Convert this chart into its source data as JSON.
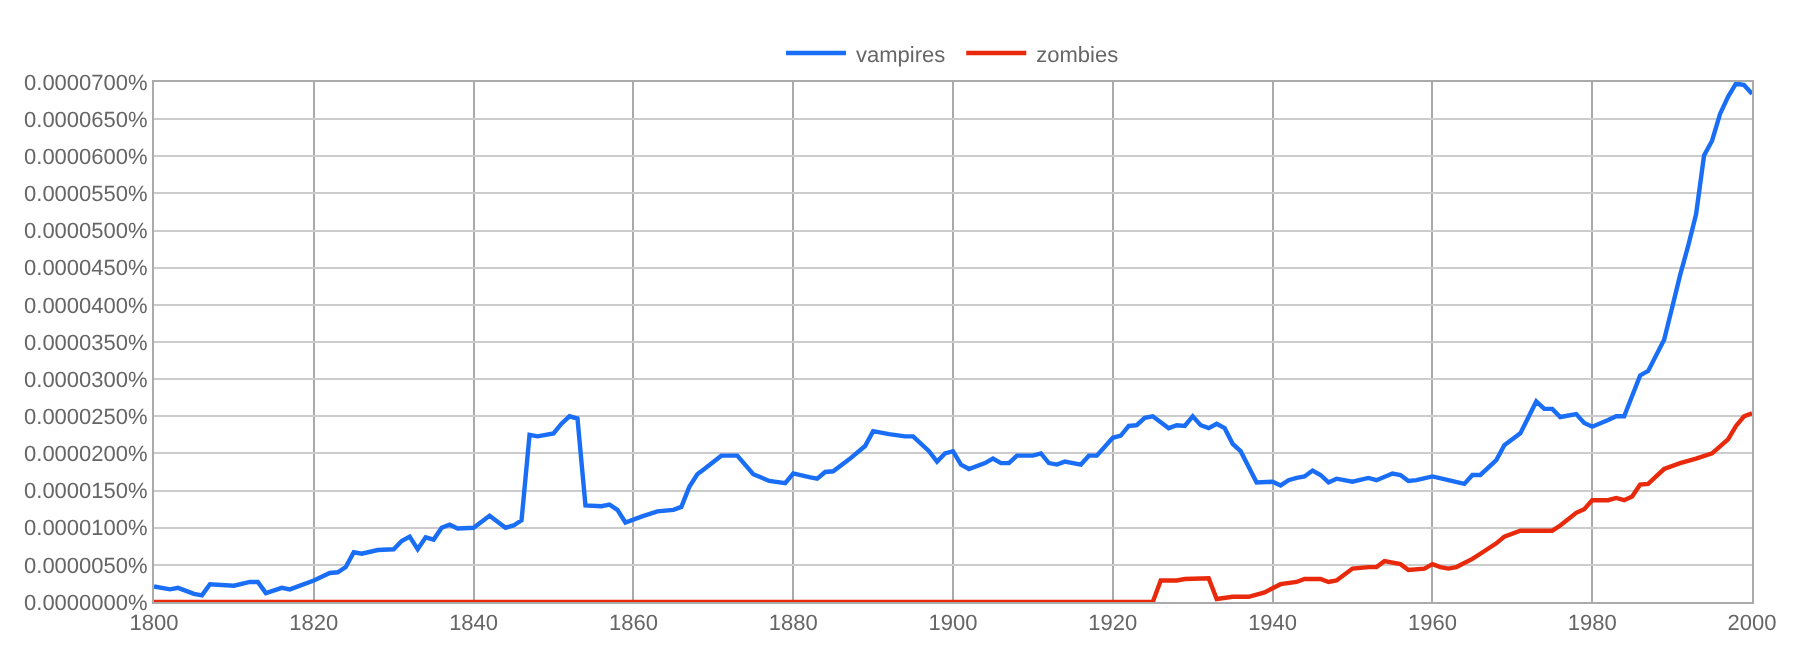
{
  "chart_data": {
    "type": "line",
    "legend": "top",
    "grid": true,
    "marker": "none",
    "line_style": "solid",
    "xlim": [
      1800,
      2000
    ],
    "xticks": [
      1800,
      1820,
      1840,
      1860,
      1880,
      1900,
      1920,
      1940,
      1960,
      1980,
      2000
    ],
    "ylim": [
      0,
      7e-05
    ],
    "yticks": [
      {
        "value": 0,
        "label": "0.0000000%"
      },
      {
        "value": 5e-06,
        "label": "0.0000050%"
      },
      {
        "value": 1e-05,
        "label": "0.0000100%"
      },
      {
        "value": 1.5e-05,
        "label": "0.0000150%"
      },
      {
        "value": 2e-05,
        "label": "0.0000200%"
      },
      {
        "value": 2.5e-05,
        "label": "0.0000250%"
      },
      {
        "value": 3e-05,
        "label": "0.0000300%"
      },
      {
        "value": 3.5e-05,
        "label": "0.0000350%"
      },
      {
        "value": 4e-05,
        "label": "0.0000400%"
      },
      {
        "value": 4.5e-05,
        "label": "0.0000450%"
      },
      {
        "value": 5e-05,
        "label": "0.0000500%"
      },
      {
        "value": 5.5e-05,
        "label": "0.0000550%"
      },
      {
        "value": 6e-05,
        "label": "0.0000600%"
      },
      {
        "value": 6.5e-05,
        "label": "0.0000650%"
      },
      {
        "value": 7e-05,
        "label": "0.0000700%"
      }
    ],
    "series": [
      {
        "name": "vampires",
        "color": "#1a6ef5",
        "x": [
          1800,
          1802,
          1803,
          1805,
          1806,
          1807,
          1810,
          1812,
          1813,
          1814,
          1816,
          1817,
          1820,
          1822,
          1823,
          1824,
          1825,
          1826,
          1828,
          1830,
          1831,
          1832,
          1833,
          1834,
          1835,
          1836,
          1837,
          1838,
          1840,
          1842,
          1844,
          1845,
          1846,
          1847,
          1848,
          1850,
          1851,
          1852,
          1853,
          1854,
          1856,
          1857,
          1858,
          1859,
          1861,
          1863,
          1865,
          1866,
          1867,
          1868,
          1869,
          1871,
          1873,
          1875,
          1877,
          1879,
          1880,
          1882,
          1883,
          1884,
          1885,
          1887,
          1889,
          1890,
          1892,
          1894,
          1895,
          1897,
          1898,
          1899,
          1900,
          1901,
          1902,
          1904,
          1905,
          1906,
          1907,
          1908,
          1910,
          1911,
          1912,
          1913,
          1914,
          1916,
          1917,
          1918,
          1920,
          1921,
          1922,
          1923,
          1924,
          1925,
          1926,
          1927,
          1928,
          1929,
          1930,
          1931,
          1932,
          1933,
          1934,
          1935,
          1936,
          1938,
          1940,
          1941,
          1942,
          1943,
          1944,
          1945,
          1946,
          1947,
          1948,
          1950,
          1952,
          1953,
          1955,
          1956,
          1957,
          1958,
          1960,
          1962,
          1964,
          1965,
          1966,
          1968,
          1969,
          1971,
          1973,
          1974,
          1975,
          1976,
          1978,
          1979,
          1980,
          1982,
          1983,
          1984,
          1986,
          1987,
          1989,
          1990,
          1991,
          1992,
          1993,
          1994,
          1995,
          1996,
          1997,
          1998,
          1999,
          2000
        ],
        "values": [
          2.1e-06,
          1.7e-06,
          1.9e-06,
          1.1e-06,
          9e-07,
          2.4e-06,
          2.2e-06,
          2.7e-06,
          2.7e-06,
          1.2e-06,
          1.9e-06,
          1.7e-06,
          2.9e-06,
          3.9e-06,
          4e-06,
          4.7e-06,
          6.7e-06,
          6.5e-06,
          7e-06,
          7.1e-06,
          8.2e-06,
          8.8e-06,
          7.1e-06,
          8.7e-06,
          8.4e-06,
          1e-05,
          1.04e-05,
          9.9e-06,
          1e-05,
          1.16e-05,
          1e-05,
          1.03e-05,
          1.1e-05,
          2.25e-05,
          2.23e-05,
          2.27e-05,
          2.4e-05,
          2.5e-05,
          2.47e-05,
          1.3e-05,
          1.29e-05,
          1.31e-05,
          1.24e-05,
          1.07e-05,
          1.15e-05,
          1.22e-05,
          1.24e-05,
          1.28e-05,
          1.55e-05,
          1.72e-05,
          1.8e-05,
          1.97e-05,
          1.97e-05,
          1.72e-05,
          1.63e-05,
          1.6e-05,
          1.73e-05,
          1.68e-05,
          1.66e-05,
          1.75e-05,
          1.76e-05,
          1.92e-05,
          2.1e-05,
          2.3e-05,
          2.26e-05,
          2.23e-05,
          2.23e-05,
          2.03e-05,
          1.89e-05,
          2e-05,
          2.03e-05,
          1.85e-05,
          1.79e-05,
          1.87e-05,
          1.93e-05,
          1.87e-05,
          1.87e-05,
          1.97e-05,
          1.97e-05,
          2e-05,
          1.87e-05,
          1.85e-05,
          1.89e-05,
          1.85e-05,
          1.97e-05,
          1.97e-05,
          2.21e-05,
          2.24e-05,
          2.37e-05,
          2.38e-05,
          2.48e-05,
          2.5e-05,
          2.42e-05,
          2.34e-05,
          2.38e-05,
          2.37e-05,
          2.5e-05,
          2.38e-05,
          2.34e-05,
          2.4e-05,
          2.34e-05,
          2.13e-05,
          2.03e-05,
          1.61e-05,
          1.62e-05,
          1.57e-05,
          1.64e-05,
          1.67e-05,
          1.69e-05,
          1.77e-05,
          1.71e-05,
          1.61e-05,
          1.66e-05,
          1.62e-05,
          1.67e-05,
          1.64e-05,
          1.73e-05,
          1.71e-05,
          1.63e-05,
          1.64e-05,
          1.69e-05,
          1.64e-05,
          1.59e-05,
          1.71e-05,
          1.71e-05,
          1.91e-05,
          2.11e-05,
          2.27e-05,
          2.7e-05,
          2.6e-05,
          2.6e-05,
          2.49e-05,
          2.53e-05,
          2.41e-05,
          2.36e-05,
          2.45e-05,
          2.5e-05,
          2.5e-05,
          3.05e-05,
          3.11e-05,
          3.53e-05,
          3.96e-05,
          4.4e-05,
          4.79e-05,
          5.22e-05,
          6.01e-05,
          6.21e-05,
          6.57e-05,
          6.8e-05,
          6.98e-05,
          6.96e-05,
          6.84e-05
        ]
      },
      {
        "name": "zombies",
        "color": "#e8290b",
        "x": [
          1800,
          1925,
          1926,
          1928,
          1929,
          1932,
          1933,
          1935,
          1937,
          1939,
          1941,
          1943,
          1944,
          1946,
          1947,
          1948,
          1950,
          1952,
          1953,
          1954,
          1956,
          1957,
          1959,
          1960,
          1961,
          1962,
          1963,
          1965,
          1966,
          1968,
          1969,
          1971,
          1973,
          1975,
          1976,
          1978,
          1979,
          1980,
          1982,
          1983,
          1984,
          1985,
          1986,
          1987,
          1988,
          1989,
          1991,
          1993,
          1995,
          1997,
          1998,
          1999,
          2000
        ],
        "values": [
          0,
          0,
          2.9e-06,
          2.9e-06,
          3.1e-06,
          3.2e-06,
          4e-07,
          7e-07,
          7e-07,
          1.3e-06,
          2.4e-06,
          2.7e-06,
          3.1e-06,
          3.1e-06,
          2.7e-06,
          2.9e-06,
          4.5e-06,
          4.7e-06,
          4.7e-06,
          5.5e-06,
          5.1e-06,
          4.3e-06,
          4.5e-06,
          5.1e-06,
          4.7e-06,
          4.5e-06,
          4.7e-06,
          5.8e-06,
          6.5e-06,
          7.9e-06,
          8.8e-06,
          9.6e-06,
          9.6e-06,
          9.6e-06,
          1.03e-05,
          1.2e-05,
          1.25e-05,
          1.37e-05,
          1.37e-05,
          1.4e-05,
          1.37e-05,
          1.42e-05,
          1.58e-05,
          1.59e-05,
          1.69e-05,
          1.79e-05,
          1.87e-05,
          1.93e-05,
          2e-05,
          2.19e-05,
          2.37e-05,
          2.5e-05,
          2.54e-05
        ]
      }
    ]
  }
}
